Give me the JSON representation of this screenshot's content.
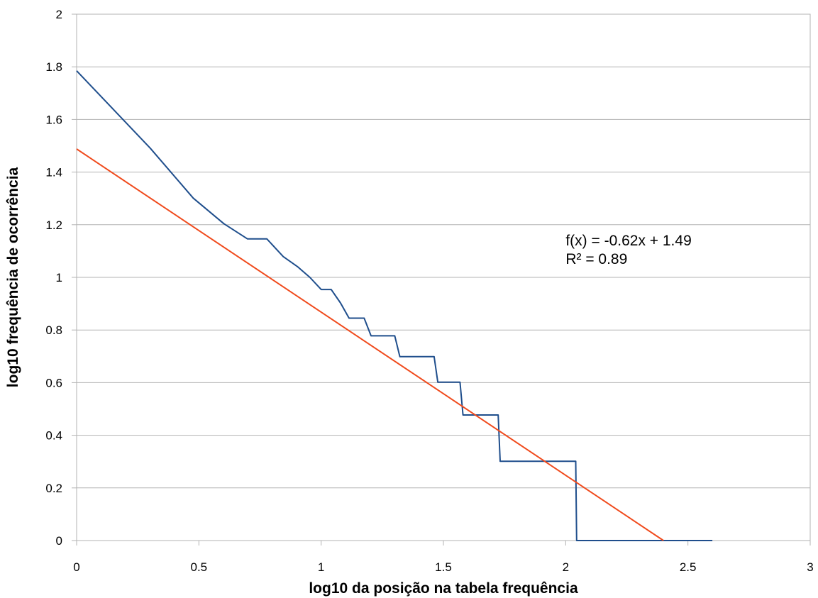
{
  "chart_data": {
    "type": "line",
    "title": "",
    "xlabel": "log10 da posição na tabela frequência",
    "ylabel": "log10 frequência de ocorrência",
    "xlim": [
      0,
      3
    ],
    "ylim": [
      0,
      2
    ],
    "x_ticks": [
      "0",
      "0.5",
      "1",
      "1.5",
      "2",
      "2.5",
      "3"
    ],
    "y_ticks": [
      "0",
      "0.2",
      "0.4",
      "0.6",
      "0.8",
      "1",
      "1.2",
      "1.4",
      "1.6",
      "1.8",
      "2"
    ],
    "grid": "horizontal",
    "legend": "none",
    "series": [
      {
        "color": "#1f4e8c",
        "points": [
          [
            0,
            1.785
          ],
          [
            0.301,
            1.491
          ],
          [
            0.477,
            1.301
          ],
          [
            0.602,
            1.204
          ],
          [
            0.699,
            1.146
          ],
          [
            0.778,
            1.146
          ],
          [
            0.845,
            1.079
          ],
          [
            0.903,
            1.041
          ],
          [
            0.954,
            1.0
          ],
          [
            1.0,
            0.954
          ],
          [
            1.041,
            0.954
          ],
          [
            1.079,
            0.903
          ],
          [
            1.114,
            0.845
          ],
          [
            1.176,
            0.845
          ],
          [
            1.204,
            0.778
          ],
          [
            1.301,
            0.778
          ],
          [
            1.322,
            0.699
          ],
          [
            1.462,
            0.699
          ],
          [
            1.477,
            0.602
          ],
          [
            1.568,
            0.602
          ],
          [
            1.58,
            0.477
          ],
          [
            1.724,
            0.477
          ],
          [
            1.732,
            0.301
          ],
          [
            2.041,
            0.301
          ],
          [
            2.045,
            0.0
          ],
          [
            2.6,
            0.0
          ]
        ]
      },
      {
        "color": "#f04a1c",
        "trendline": {
          "slope": -0.62,
          "intercept": 1.49
        },
        "points": [
          [
            0,
            1.488
          ],
          [
            2.4,
            0.0
          ]
        ]
      }
    ],
    "annotation": {
      "lines": [
        "f(x) = -0.62x + 1.49",
        "R² = 0.89"
      ],
      "x": 2.0,
      "y": 1.14
    }
  }
}
